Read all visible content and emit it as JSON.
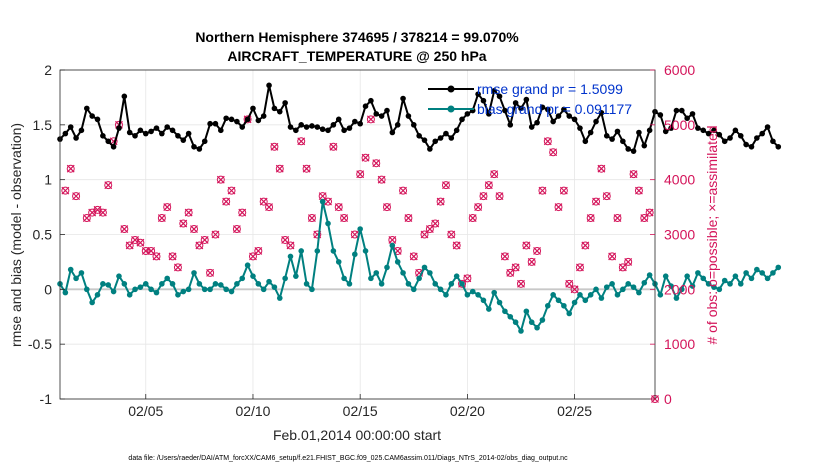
{
  "chart_data": {
    "type": "line",
    "title_line1": "Northern Hemisphere 374695 / 378214 = 99.070%",
    "title_line2": "AIRCRAFT_TEMPERATURE @ 250 hPa",
    "xlabel": "Feb.01,2014 00:00:00 start",
    "ylabel_left": "rmse and bias (model - observation)",
    "ylabel_right": "# of obs: o=possible; ×=assimilated",
    "x_range": [
      1.0,
      28.75
    ],
    "x_ticks": [
      {
        "value": 5,
        "label": "02/05"
      },
      {
        "value": 10,
        "label": "02/10"
      },
      {
        "value": 15,
        "label": "02/15"
      },
      {
        "value": 20,
        "label": "02/20"
      },
      {
        "value": 25,
        "label": "02/25"
      }
    ],
    "ylim_left": [
      -1,
      2
    ],
    "yticks_left": [
      "-1",
      "-0.5",
      "0",
      "0.5",
      "1",
      "1.5",
      "2"
    ],
    "ylim_right": [
      0,
      6000
    ],
    "yticks_right": [
      "0",
      "1000",
      "2000",
      "3000",
      "4000",
      "5000",
      "6000"
    ],
    "grid": true,
    "legend": [
      {
        "label": "rmse grand pr = 1.5099",
        "color": "#000000"
      },
      {
        "label": "bias grand pr = 0.091177",
        "color": "#008080"
      }
    ],
    "footnote": "data file: /Users/raeder/DAI/ATM_forcXX/CAM6_setup/f.e21.FHIST_BGC.f09_025.CAM6assim.011/Diags_NTrS_2014-02/obs_diag_output.nc",
    "x_start": 1.0,
    "x_step": 0.25,
    "series": [
      {
        "name": "rmse",
        "color": "#000000",
        "values": [
          1.37,
          1.42,
          1.48,
          1.38,
          1.45,
          1.65,
          1.58,
          1.55,
          1.4,
          1.35,
          1.3,
          1.47,
          1.76,
          1.43,
          1.4,
          1.45,
          1.42,
          1.44,
          1.47,
          1.42,
          1.48,
          1.45,
          1.4,
          1.36,
          1.42,
          1.3,
          1.28,
          1.35,
          1.51,
          1.51,
          1.45,
          1.56,
          1.55,
          1.53,
          1.48,
          1.55,
          1.65,
          1.54,
          1.58,
          1.86,
          1.65,
          1.62,
          1.7,
          1.48,
          1.45,
          1.5,
          1.48,
          1.49,
          1.48,
          1.46,
          1.45,
          1.5,
          1.55,
          1.45,
          1.47,
          1.53,
          1.51,
          1.67,
          1.72,
          1.6,
          1.58,
          1.63,
          1.43,
          1.5,
          1.74,
          1.58,
          1.5,
          1.4,
          1.36,
          1.28,
          1.35,
          1.38,
          1.42,
          1.38,
          1.45,
          1.55,
          1.6,
          1.63,
          1.78,
          1.72,
          1.6,
          1.81,
          1.76,
          1.63,
          1.5,
          1.7,
          1.65,
          1.73,
          1.48,
          1.52,
          1.66,
          1.64,
          1.53,
          1.58,
          1.64,
          1.58,
          1.55,
          1.47,
          1.35,
          1.43,
          1.53,
          1.61,
          1.4,
          1.37,
          1.44,
          1.35,
          1.28,
          1.26,
          1.43,
          1.31,
          1.45,
          1.62,
          1.59,
          1.44,
          1.47,
          1.63,
          1.63,
          1.56,
          1.6,
          1.47,
          1.45,
          1.42,
          1.45,
          1.41,
          1.35,
          1.38,
          1.45,
          1.4,
          1.32,
          1.3,
          1.38,
          1.42,
          1.48,
          1.35,
          1.3
        ]
      },
      {
        "name": "bias",
        "color": "#008080",
        "values": [
          0.05,
          -0.03,
          0.18,
          0.1,
          0.15,
          0.0,
          -0.12,
          -0.05,
          0.05,
          0.04,
          -0.02,
          0.12,
          0.05,
          -0.05,
          0.0,
          0.02,
          0.05,
          0.0,
          -0.03,
          0.05,
          0.1,
          0.05,
          -0.05,
          -0.02,
          0.0,
          0.15,
          0.05,
          0.0,
          0.0,
          0.05,
          0.04,
          0.0,
          -0.02,
          0.05,
          0.1,
          0.22,
          0.12,
          0.05,
          0.0,
          0.07,
          0.02,
          -0.08,
          0.1,
          0.3,
          0.12,
          0.35,
          0.05,
          0.0,
          0.35,
          0.8,
          0.6,
          0.35,
          0.25,
          0.1,
          0.05,
          0.32,
          0.55,
          0.35,
          0.1,
          0.15,
          0.05,
          0.2,
          0.4,
          0.25,
          0.15,
          0.05,
          0.0,
          0.1,
          0.2,
          0.15,
          0.05,
          0.0,
          -0.05,
          0.05,
          0.12,
          0.05,
          -0.05,
          -0.02,
          -0.05,
          -0.1,
          -0.18,
          -0.03,
          -0.12,
          -0.2,
          -0.25,
          -0.3,
          -0.38,
          -0.2,
          -0.3,
          -0.35,
          -0.28,
          -0.15,
          -0.05,
          -0.1,
          -0.15,
          -0.22,
          -0.12,
          -0.05,
          -0.1,
          -0.05,
          0.0,
          -0.08,
          0.02,
          0.05,
          -0.05,
          0.0,
          0.05,
          0.02,
          -0.03,
          0.06,
          0.13,
          0.05,
          -0.05,
          0.12,
          0.03,
          -0.08,
          0.0,
          0.12,
          0.03,
          0.15,
          0.1,
          0.05,
          0.02,
          0.0,
          0.08,
          0.05,
          0.12,
          0.05,
          0.15,
          0.1,
          0.18,
          0.15,
          0.1,
          0.15,
          0.2
        ]
      }
    ],
    "obs_points": [
      {
        "x": 1.25,
        "n": 3800
      },
      {
        "x": 1.5,
        "n": 4200
      },
      {
        "x": 1.75,
        "n": 3700
      },
      {
        "x": 2.25,
        "n": 3300
      },
      {
        "x": 2.5,
        "n": 3400
      },
      {
        "x": 2.75,
        "n": 3450
      },
      {
        "x": 3.0,
        "n": 3400
      },
      {
        "x": 3.25,
        "n": 3900
      },
      {
        "x": 3.5,
        "n": 4700
      },
      {
        "x": 3.75,
        "n": 5000
      },
      {
        "x": 4.0,
        "n": 3100
      },
      {
        "x": 4.25,
        "n": 2800
      },
      {
        "x": 4.5,
        "n": 2900
      },
      {
        "x": 4.75,
        "n": 2850
      },
      {
        "x": 5.0,
        "n": 2700
      },
      {
        "x": 5.25,
        "n": 2700
      },
      {
        "x": 5.5,
        "n": 2600
      },
      {
        "x": 5.75,
        "n": 3300
      },
      {
        "x": 6.0,
        "n": 3500
      },
      {
        "x": 6.25,
        "n": 2600
      },
      {
        "x": 6.5,
        "n": 2400
      },
      {
        "x": 6.75,
        "n": 3200
      },
      {
        "x": 7.0,
        "n": 3400
      },
      {
        "x": 7.25,
        "n": 3100
      },
      {
        "x": 7.5,
        "n": 2800
      },
      {
        "x": 7.75,
        "n": 2900
      },
      {
        "x": 8.0,
        "n": 2300
      },
      {
        "x": 8.25,
        "n": 3000
      },
      {
        "x": 8.5,
        "n": 4000
      },
      {
        "x": 8.75,
        "n": 3600
      },
      {
        "x": 9.0,
        "n": 3800
      },
      {
        "x": 9.25,
        "n": 3100
      },
      {
        "x": 9.5,
        "n": 3400
      },
      {
        "x": 9.75,
        "n": 5100
      },
      {
        "x": 10.0,
        "n": 2600
      },
      {
        "x": 10.25,
        "n": 2700
      },
      {
        "x": 10.5,
        "n": 3600
      },
      {
        "x": 10.75,
        "n": 3500
      },
      {
        "x": 11.0,
        "n": 4600
      },
      {
        "x": 11.25,
        "n": 4200
      },
      {
        "x": 11.5,
        "n": 2900
      },
      {
        "x": 11.75,
        "n": 2800
      },
      {
        "x": 12.25,
        "n": 4700
      },
      {
        "x": 12.5,
        "n": 4200
      },
      {
        "x": 12.75,
        "n": 3300
      },
      {
        "x": 13.0,
        "n": 3000
      },
      {
        "x": 13.25,
        "n": 3700
      },
      {
        "x": 13.5,
        "n": 3600
      },
      {
        "x": 13.75,
        "n": 4600
      },
      {
        "x": 14.0,
        "n": 3500
      },
      {
        "x": 14.25,
        "n": 3300
      },
      {
        "x": 14.75,
        "n": 3000
      },
      {
        "x": 15.0,
        "n": 4100
      },
      {
        "x": 15.25,
        "n": 4400
      },
      {
        "x": 15.5,
        "n": 5100
      },
      {
        "x": 15.75,
        "n": 4300
      },
      {
        "x": 16.0,
        "n": 4000
      },
      {
        "x": 16.25,
        "n": 3500
      },
      {
        "x": 16.5,
        "n": 2900
      },
      {
        "x": 16.75,
        "n": 2700
      },
      {
        "x": 17.0,
        "n": 3800
      },
      {
        "x": 17.25,
        "n": 3300
      },
      {
        "x": 17.5,
        "n": 2600
      },
      {
        "x": 17.75,
        "n": 2300
      },
      {
        "x": 18.0,
        "n": 3000
      },
      {
        "x": 18.25,
        "n": 3100
      },
      {
        "x": 18.5,
        "n": 3200
      },
      {
        "x": 18.75,
        "n": 3600
      },
      {
        "x": 19.0,
        "n": 3900
      },
      {
        "x": 19.25,
        "n": 3000
      },
      {
        "x": 19.5,
        "n": 2800
      },
      {
        "x": 19.75,
        "n": 2100
      },
      {
        "x": 20.0,
        "n": 2200
      },
      {
        "x": 20.25,
        "n": 3300
      },
      {
        "x": 20.5,
        "n": 3500
      },
      {
        "x": 20.75,
        "n": 3700
      },
      {
        "x": 21.0,
        "n": 3900
      },
      {
        "x": 21.25,
        "n": 4100
      },
      {
        "x": 21.5,
        "n": 3700
      },
      {
        "x": 21.75,
        "n": 2600
      },
      {
        "x": 22.0,
        "n": 2300
      },
      {
        "x": 22.25,
        "n": 2400
      },
      {
        "x": 22.5,
        "n": 2100
      },
      {
        "x": 22.75,
        "n": 2800
      },
      {
        "x": 23.0,
        "n": 2500
      },
      {
        "x": 23.25,
        "n": 2700
      },
      {
        "x": 23.5,
        "n": 3800
      },
      {
        "x": 23.75,
        "n": 4700
      },
      {
        "x": 24.0,
        "n": 4500
      },
      {
        "x": 24.25,
        "n": 3500
      },
      {
        "x": 24.5,
        "n": 3800
      },
      {
        "x": 24.75,
        "n": 2100
      },
      {
        "x": 25.0,
        "n": 2000
      },
      {
        "x": 25.25,
        "n": 2400
      },
      {
        "x": 25.5,
        "n": 2800
      },
      {
        "x": 25.75,
        "n": 3300
      },
      {
        "x": 26.0,
        "n": 3600
      },
      {
        "x": 26.25,
        "n": 4200
      },
      {
        "x": 26.5,
        "n": 3700
      },
      {
        "x": 26.75,
        "n": 2600
      },
      {
        "x": 27.0,
        "n": 3300
      },
      {
        "x": 27.25,
        "n": 2400
      },
      {
        "x": 27.5,
        "n": 2500
      },
      {
        "x": 27.75,
        "n": 4100
      },
      {
        "x": 28.0,
        "n": 3800
      },
      {
        "x": 28.25,
        "n": 3300
      },
      {
        "x": 28.5,
        "n": 3400
      },
      {
        "x": 28.75,
        "n": 0
      }
    ]
  }
}
